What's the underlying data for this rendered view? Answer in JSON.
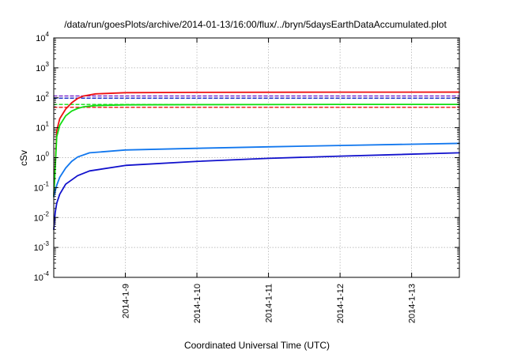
{
  "chart_data": {
    "type": "line",
    "title": "/data/run/goesPlots/archive/2014-01-13/16:00/flux/../bryn/5daysEarthDataAccumulated.plot",
    "xlabel": "Coordinated Universal Time (UTC)",
    "ylabel": "cSv",
    "yscale": "log",
    "ylim": [
      0.0001,
      10000
    ],
    "xlim": [
      "2014-01-08T00:00",
      "2014-01-13T16:00"
    ],
    "grid": true,
    "x_ticks": [
      {
        "label": "2014-1-9",
        "at": "2014-01-09T00:00"
      },
      {
        "label": "2014-1-10",
        "at": "2014-01-10T00:00"
      },
      {
        "label": "2014-1-11",
        "at": "2014-01-11T00:00"
      },
      {
        "label": "2014-1-12",
        "at": "2014-01-12T00:00"
      },
      {
        "label": "2014-1-13",
        "at": "2014-01-13T00:00"
      }
    ],
    "y_ticks": [
      {
        "base": "10",
        "exp": "-4",
        "value": 0.0001
      },
      {
        "base": "10",
        "exp": "-3",
        "value": 0.001
      },
      {
        "base": "10",
        "exp": "-2",
        "value": 0.01
      },
      {
        "base": "10",
        "exp": "-1",
        "value": 0.1
      },
      {
        "base": "10",
        "exp": "0",
        "value": 1
      },
      {
        "base": "10",
        "exp": "1",
        "value": 10
      },
      {
        "base": "10",
        "exp": "2",
        "value": 100
      },
      {
        "base": "10",
        "exp": "3",
        "value": 1000
      },
      {
        "base": "10",
        "exp": "4",
        "value": 10000
      }
    ],
    "series": [
      {
        "color": "#ee1111",
        "style": "solid",
        "points": [
          [
            "2014-01-08T00:00",
            0.05
          ],
          [
            "2014-01-08T01:00",
            8
          ],
          [
            "2014-01-08T02:00",
            20
          ],
          [
            "2014-01-08T04:00",
            42
          ],
          [
            "2014-01-08T06:00",
            68
          ],
          [
            "2014-01-08T08:00",
            95
          ],
          [
            "2014-01-08T10:00",
            115
          ],
          [
            "2014-01-08T14:00",
            135
          ],
          [
            "2014-01-09T00:00",
            148
          ],
          [
            "2014-01-10T00:00",
            152
          ],
          [
            "2014-01-12T00:00",
            154
          ],
          [
            "2014-01-13T16:00",
            155
          ]
        ]
      },
      {
        "color": "#11dd11",
        "style": "solid",
        "points": [
          [
            "2014-01-08T00:00",
            0.05
          ],
          [
            "2014-01-08T01:00",
            5
          ],
          [
            "2014-01-08T02:00",
            12
          ],
          [
            "2014-01-08T04:00",
            25
          ],
          [
            "2014-01-08T06:00",
            36
          ],
          [
            "2014-01-08T08:00",
            44
          ],
          [
            "2014-01-08T10:00",
            50
          ],
          [
            "2014-01-08T14:00",
            55
          ],
          [
            "2014-01-09T00:00",
            58
          ],
          [
            "2014-01-10T00:00",
            59
          ],
          [
            "2014-01-12T00:00",
            60
          ],
          [
            "2014-01-13T16:00",
            60
          ]
        ]
      },
      {
        "color": "#1177ee",
        "style": "solid",
        "points": [
          [
            "2014-01-08T00:00",
            0.05
          ],
          [
            "2014-01-08T01:00",
            0.12
          ],
          [
            "2014-01-08T02:00",
            0.22
          ],
          [
            "2014-01-08T04:00",
            0.45
          ],
          [
            "2014-01-08T06:00",
            0.75
          ],
          [
            "2014-01-08T08:00",
            1.05
          ],
          [
            "2014-01-08T12:00",
            1.45
          ],
          [
            "2014-01-09T00:00",
            1.8
          ],
          [
            "2014-01-10T00:00",
            2.05
          ],
          [
            "2014-01-11T00:00",
            2.3
          ],
          [
            "2014-01-12T00:00",
            2.55
          ],
          [
            "2014-01-13T16:00",
            3.0
          ]
        ]
      },
      {
        "color": "#1111cc",
        "style": "solid",
        "points": [
          [
            "2014-01-08T00:00",
            0.004
          ],
          [
            "2014-01-08T00:30",
            0.015
          ],
          [
            "2014-01-08T01:00",
            0.03
          ],
          [
            "2014-01-08T02:00",
            0.06
          ],
          [
            "2014-01-08T04:00",
            0.13
          ],
          [
            "2014-01-08T08:00",
            0.25
          ],
          [
            "2014-01-08T12:00",
            0.36
          ],
          [
            "2014-01-09T00:00",
            0.55
          ],
          [
            "2014-01-10T00:00",
            0.75
          ],
          [
            "2014-01-11T00:00",
            0.95
          ],
          [
            "2014-01-12T00:00",
            1.12
          ],
          [
            "2014-01-13T16:00",
            1.45
          ]
        ]
      },
      {
        "color": "#7722cc",
        "style": "dashed",
        "points": [
          [
            "2014-01-08T00:00",
            115
          ],
          [
            "2014-01-13T16:00",
            115
          ]
        ]
      },
      {
        "color": "#2233cc",
        "style": "dashed",
        "points": [
          [
            "2014-01-08T00:00",
            97
          ],
          [
            "2014-01-13T16:00",
            97
          ]
        ]
      },
      {
        "color": "#11dd11",
        "style": "dashed",
        "points": [
          [
            "2014-01-08T00:00",
            60
          ],
          [
            "2014-01-13T16:00",
            60
          ]
        ]
      },
      {
        "color": "#ee1111",
        "style": "dashed",
        "points": [
          [
            "2014-01-08T00:00",
            48
          ],
          [
            "2014-01-13T16:00",
            48
          ]
        ]
      }
    ]
  }
}
